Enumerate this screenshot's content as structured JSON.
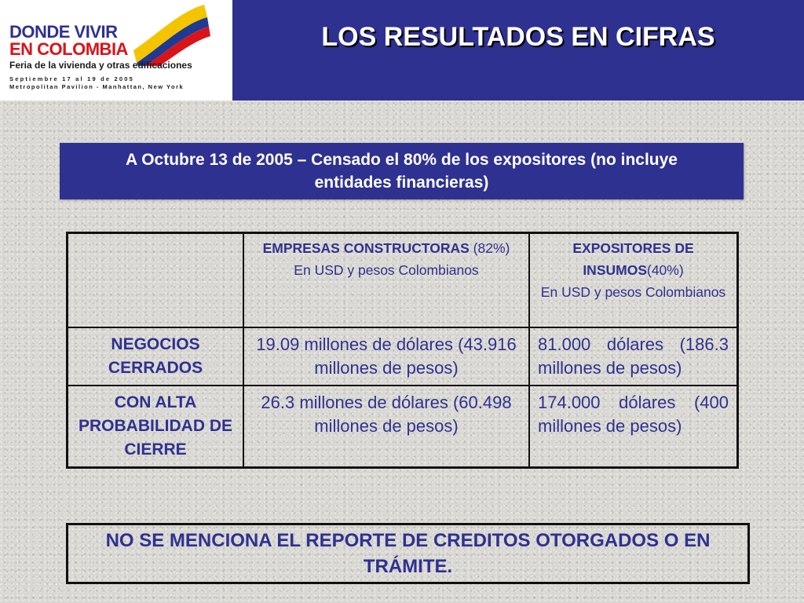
{
  "logo": {
    "line1": "DONDE VIVIR",
    "line2": "EN COLOMBIA",
    "line3": "Feria de la vivienda y otras edificaciones",
    "line4": "Septiembre 17 al 19 de 2005",
    "line5": "Metropolitan Pavilion - Manhattan, New York"
  },
  "title": "LOS RESULTADOS EN CIFRAS",
  "banner": "A Octubre 13 de 2005 – Censado el  80% de los expositores (no incluye entidades financieras)",
  "table": {
    "columns": [
      {
        "bold": "EMPRESAS CONSTRUCTORAS",
        "pct": " (82%)",
        "sub": "En USD y   pesos Colombianos"
      },
      {
        "bold": "EXPOSITORES DE INSUMOS",
        "pct": "(40%)",
        "sub": "En USD y   pesos Colombianos"
      }
    ],
    "rows": [
      {
        "label": "NEGOCIOS CERRADOS",
        "col1": "19.09 millones de dólares (43.916 millones de pesos)",
        "col2": "81.000 dólares (186.3 millones de pesos)"
      },
      {
        "label": "CON ALTA PROBABILIDAD DE CIERRE",
        "col1": "26.3 millones de dólares (60.498 millones de pesos)",
        "col2": "174.000 dólares (400 millones de pesos)"
      }
    ]
  },
  "note": "NO SE MENCIONA EL  REPORTE DE CREDITOS OTORGADOS O EN TRÁMITE.",
  "colors": {
    "primary": "#2e3190",
    "flag_yellow": "#f5c400",
    "flag_blue": "#1f3a93",
    "flag_red": "#d9131a"
  }
}
